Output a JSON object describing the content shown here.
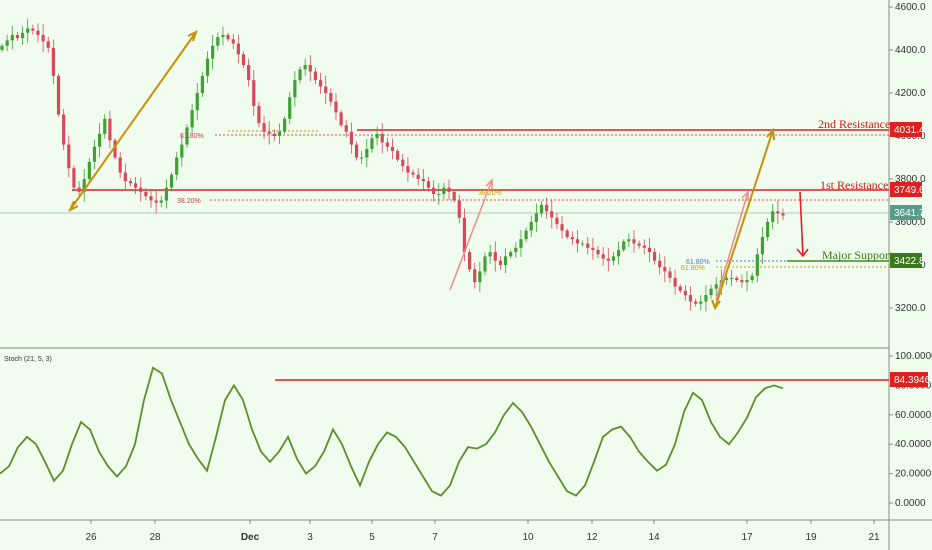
{
  "chart_data": [
    {
      "type": "candlestick",
      "price_axis": {
        "ticks": [
          "4600.0",
          "4400.0",
          "4200.0",
          "4000.0",
          "3800.0",
          "3600.0",
          "3400.0",
          "3200.0"
        ],
        "range": [
          3080,
          4640
        ]
      },
      "date_axis": {
        "ticks": [
          "26",
          "28",
          "Dec",
          "3",
          "5",
          "7",
          "10",
          "12",
          "14",
          "17",
          "19",
          "21"
        ]
      },
      "close_series": [
        4420,
        4445,
        4470,
        4455,
        4480,
        4500,
        4490,
        4470,
        4440,
        4410,
        4280,
        4100,
        3960,
        3850,
        3760,
        3740,
        3800,
        3880,
        3950,
        4010,
        4080,
        3980,
        3900,
        3830,
        3790,
        3780,
        3760,
        3740,
        3720,
        3700,
        3690,
        3700,
        3760,
        3820,
        3900,
        3960,
        4040,
        4120,
        4200,
        4280,
        4360,
        4420,
        4460,
        4470,
        4450,
        4430,
        4380,
        4330,
        4260,
        4140,
        4060,
        4020,
        4010,
        4000,
        4020,
        4080,
        4180,
        4260,
        4310,
        4330,
        4300,
        4260,
        4230,
        4200,
        4160,
        4110,
        4050,
        4020,
        3960,
        3900,
        3900,
        3940,
        3990,
        4010,
        3970,
        3950,
        3930,
        3890,
        3860,
        3830,
        3820,
        3800,
        3790,
        3760,
        3730,
        3730,
        3760,
        3740,
        3700,
        3620,
        3460,
        3380,
        3320,
        3370,
        3440,
        3460,
        3420,
        3400,
        3440,
        3460,
        3480,
        3520,
        3560,
        3600,
        3640,
        3680,
        3650,
        3620,
        3590,
        3560,
        3530,
        3520,
        3500,
        3500,
        3480,
        3470,
        3450,
        3430,
        3420,
        3440,
        3470,
        3510,
        3520,
        3500,
        3490,
        3480,
        3460,
        3420,
        3390,
        3370,
        3340,
        3300,
        3280,
        3260,
        3230,
        3220,
        3230,
        3260,
        3290,
        3310,
        3330,
        3340,
        3340,
        3330,
        3320,
        3330,
        3350,
        3450,
        3530,
        3600,
        3650,
        3640,
        3630
      ],
      "indicator_tags": {
        "resistance2": "4031.4",
        "resistance1": "3749.6",
        "last_price": "3641.7",
        "support": "3422.8"
      },
      "annotations": {
        "resistance2_label": "2nd Resistance",
        "resistance1_label": "1st Resistance",
        "support_label": "Major Support",
        "fib_618_a": "61.80%",
        "fib_382": "38.20%",
        "fib_618_b": "61.80%",
        "fib_618_c": "61.80%",
        "fib_382_b": "38.20%"
      }
    },
    {
      "type": "line",
      "title": "Stoch (21, 5, 3)",
      "value_axis": {
        "ticks": [
          "100.0000",
          "80.0000",
          "60.0000",
          "40.0000",
          "20.0000",
          "0.0000"
        ],
        "range": [
          -10,
          105
        ]
      },
      "level": "84.3946",
      "values": [
        20,
        25,
        38,
        45,
        40,
        28,
        15,
        22,
        40,
        55,
        50,
        35,
        25,
        18,
        25,
        40,
        70,
        92,
        88,
        70,
        55,
        40,
        30,
        22,
        45,
        70,
        80,
        70,
        50,
        35,
        28,
        35,
        45,
        30,
        20,
        25,
        35,
        50,
        40,
        25,
        12,
        28,
        40,
        48,
        45,
        38,
        28,
        18,
        8,
        5,
        12,
        28,
        38,
        37,
        40,
        48,
        60,
        68,
        62,
        52,
        40,
        28,
        18,
        8,
        5,
        12,
        28,
        45,
        50,
        52,
        45,
        35,
        28,
        22,
        26,
        40,
        62,
        75,
        70,
        55,
        45,
        40,
        48,
        58,
        72,
        78,
        80,
        78
      ]
    }
  ]
}
